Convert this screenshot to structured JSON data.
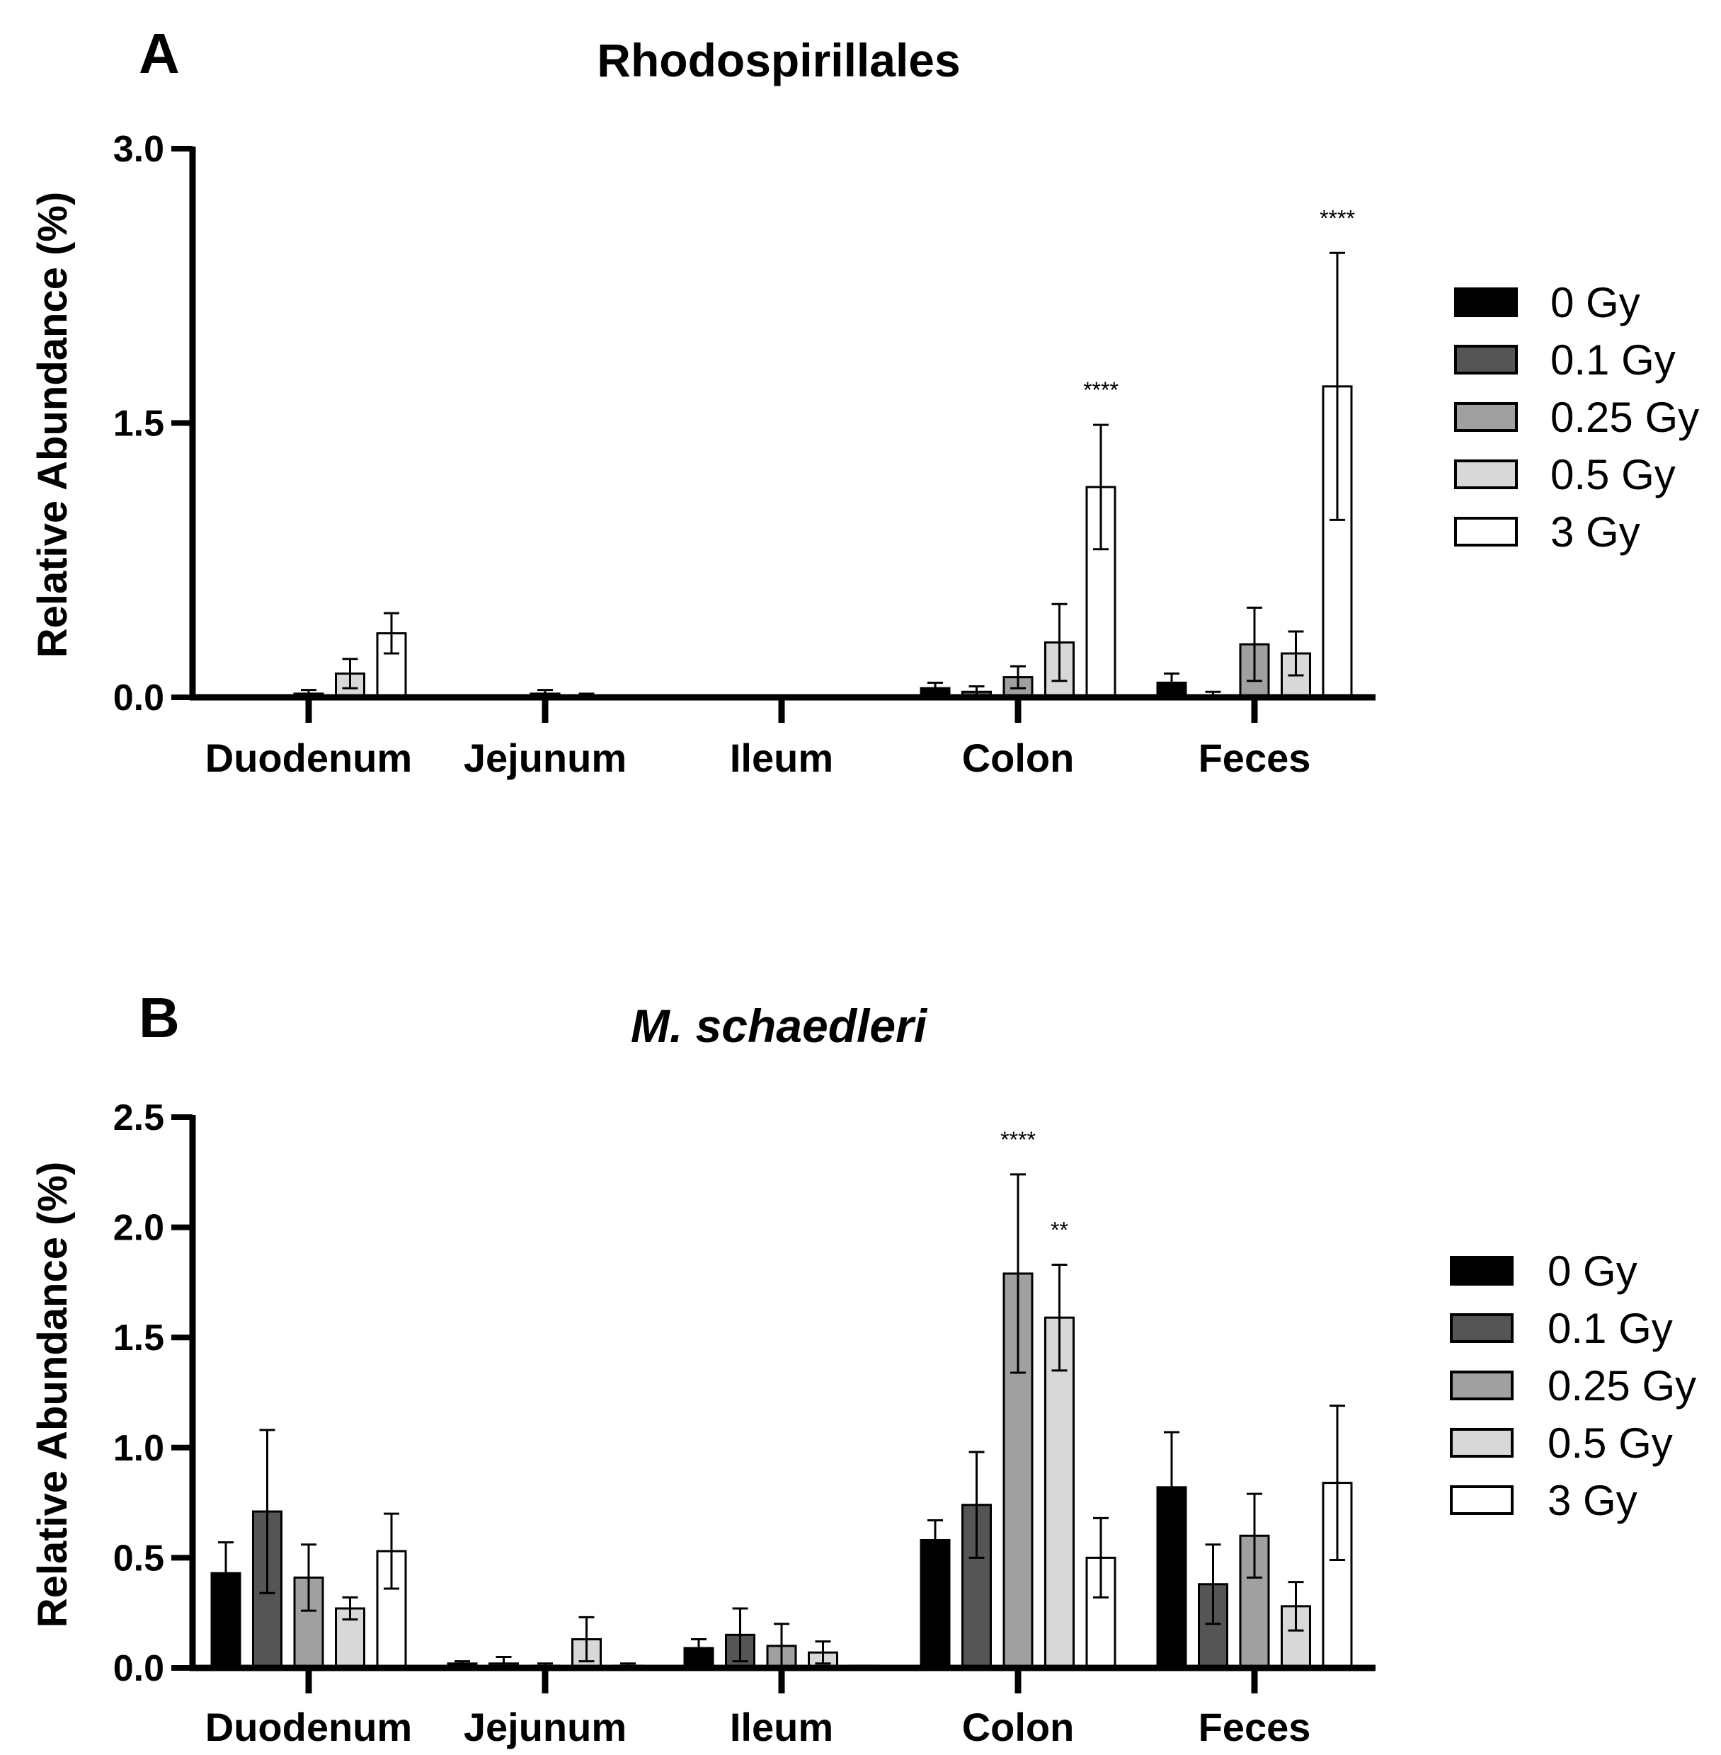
{
  "legend": [
    {
      "label": "0 Gy",
      "color": "#000000"
    },
    {
      "label": "0.1 Gy",
      "color": "#555555"
    },
    {
      "label": "0.25 Gy",
      "color": "#a0a0a0"
    },
    {
      "label": "0.5 Gy",
      "color": "#d8d8d8"
    },
    {
      "label": "3 Gy",
      "color": "#ffffff"
    }
  ],
  "chart_data": [
    {
      "panel": "A",
      "type": "bar",
      "title": "Rhodospirillales",
      "title_italic": false,
      "ylabel": "Relative Abundance (%)",
      "xlabel": "",
      "ylim": [
        0,
        3.0
      ],
      "yticks": [
        0.0,
        1.5,
        3.0
      ],
      "ytick_labels": [
        "0.0",
        "1.5",
        "3.0"
      ],
      "categories": [
        "Duodenum",
        "Jejunum",
        "Ileum",
        "Colon",
        "Feces"
      ],
      "series": [
        {
          "name": "0 Gy",
          "values": [
            0.0,
            0.0,
            0.0,
            0.05,
            0.08
          ],
          "errors": [
            0.0,
            0.0,
            0.0,
            0.03,
            0.05
          ]
        },
        {
          "name": "0.1 Gy",
          "values": [
            0.0,
            0.0,
            0.0,
            0.03,
            0.01
          ],
          "errors": [
            0.0,
            0.0,
            0.0,
            0.03,
            0.02
          ]
        },
        {
          "name": "0.25 Gy",
          "values": [
            0.02,
            0.02,
            0.0,
            0.11,
            0.29
          ],
          "errors": [
            0.02,
            0.02,
            0.0,
            0.06,
            0.2
          ]
        },
        {
          "name": "0.5 Gy",
          "values": [
            0.13,
            0.01,
            0.0,
            0.3,
            0.24
          ],
          "errors": [
            0.08,
            0.01,
            0.0,
            0.21,
            0.12
          ]
        },
        {
          "name": "3 Gy",
          "values": [
            0.35,
            0.0,
            0.0,
            1.15,
            1.7
          ],
          "errors": [
            0.11,
            0.0,
            0.0,
            0.34,
            0.73
          ]
        }
      ],
      "annotations": [
        {
          "category": "Colon",
          "series": "3 Gy",
          "text": "****"
        },
        {
          "category": "Feces",
          "series": "3 Gy",
          "text": "****"
        }
      ]
    },
    {
      "panel": "B",
      "type": "bar",
      "title": "M. schaedleri",
      "title_italic": true,
      "ylabel": "Relative Abundance (%)",
      "xlabel": "",
      "ylim": [
        0,
        2.5
      ],
      "yticks": [
        0.0,
        0.5,
        1.0,
        1.5,
        2.0,
        2.5
      ],
      "ytick_labels": [
        "0.0",
        "0.5",
        "1.0",
        "1.5",
        "2.0",
        "2.5"
      ],
      "categories": [
        "Duodenum",
        "Jejunum",
        "Ileum",
        "Colon",
        "Feces"
      ],
      "series": [
        {
          "name": "0 Gy",
          "values": [
            0.43,
            0.02,
            0.09,
            0.58,
            0.82
          ],
          "errors": [
            0.14,
            0.01,
            0.04,
            0.09,
            0.25
          ]
        },
        {
          "name": "0.1 Gy",
          "values": [
            0.71,
            0.02,
            0.15,
            0.74,
            0.38
          ],
          "errors": [
            0.37,
            0.03,
            0.12,
            0.24,
            0.18
          ]
        },
        {
          "name": "0.25 Gy",
          "values": [
            0.41,
            0.01,
            0.1,
            1.79,
            0.6
          ],
          "errors": [
            0.15,
            0.01,
            0.1,
            0.45,
            0.19
          ]
        },
        {
          "name": "0.5 Gy",
          "values": [
            0.27,
            0.13,
            0.07,
            1.59,
            0.28
          ],
          "errors": [
            0.05,
            0.1,
            0.05,
            0.24,
            0.11
          ]
        },
        {
          "name": "3 Gy",
          "values": [
            0.53,
            0.01,
            0.01,
            0.5,
            0.84
          ],
          "errors": [
            0.17,
            0.01,
            0.0,
            0.18,
            0.35
          ]
        }
      ],
      "annotations": [
        {
          "category": "Colon",
          "series": "0.25 Gy",
          "text": "****"
        },
        {
          "category": "Colon",
          "series": "0.5 Gy",
          "text": "**"
        }
      ]
    }
  ]
}
